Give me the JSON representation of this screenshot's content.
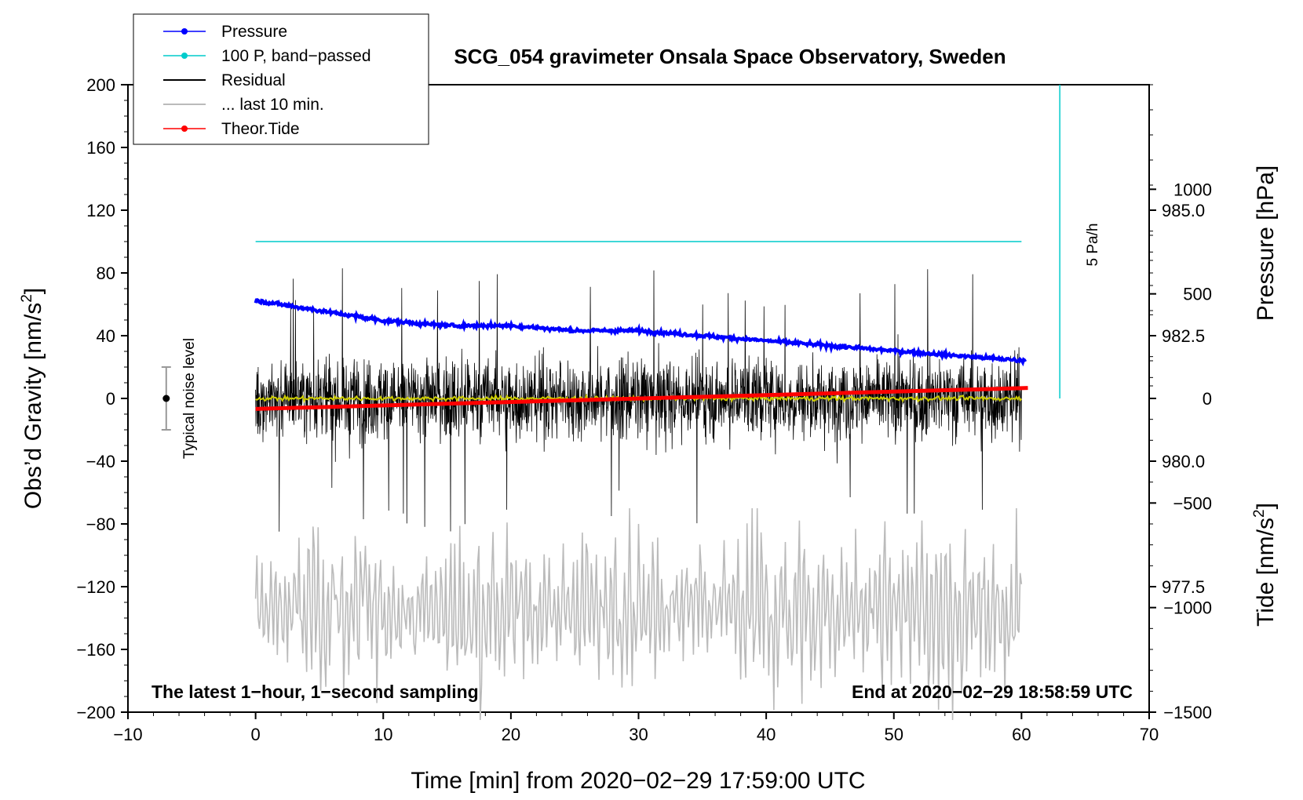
{
  "chart_data": {
    "type": "line",
    "title": "SCG_054 gravimeter Onsala Space Observatory, Sweden",
    "xlabel": "Time [min] from 2020−02−29 17:59:00 UTC",
    "ylabel_left_main": "Obs’d Gravity [nm/s",
    "ylabel_left_sup": "2",
    "ylabel_left_close": "]",
    "ylabel_right_pressure": "Pressure [hPa]",
    "ylabel_right_tide_main": "Tide [nm/s",
    "ylabel_right_tide_sup": "2",
    "ylabel_right_tide_close": "]",
    "xlim": [
      -10,
      70
    ],
    "ylim_left": [
      -200,
      200
    ],
    "ylim_pressure": [
      975.0,
      987.5
    ],
    "ylim_tide": [
      -1500,
      1500
    ],
    "x_ticks": [
      "−10",
      "0",
      "10",
      "20",
      "30",
      "40",
      "50",
      "60",
      "70"
    ],
    "x_tick_values": [
      -10,
      0,
      10,
      20,
      30,
      40,
      50,
      60,
      70
    ],
    "y_ticks_left": [
      "200",
      "160",
      "120",
      "80",
      "40",
      "0",
      "−40",
      "−80",
      "−120",
      "−160",
      "−200"
    ],
    "y_tick_values_left": [
      200,
      160,
      120,
      80,
      40,
      0,
      -40,
      -80,
      -120,
      -160,
      -200
    ],
    "y_ticks_pressure": [
      "985.0",
      "982.5",
      "980.0",
      "977.5"
    ],
    "y_tick_values_pressure": [
      985.0,
      982.5,
      980.0,
      977.5
    ],
    "y_ticks_tide": [
      "1000",
      "500",
      "0",
      "−500",
      "−1000",
      "−1500"
    ],
    "y_tick_values_tide": [
      1000,
      500,
      0,
      -500,
      -1000,
      -1500
    ],
    "legend": [
      {
        "label": "Pressure",
        "color": "#0000ff",
        "style": "line-dot"
      },
      {
        "label": "100 P, band−passed",
        "color": "#00cccc",
        "style": "line-dot"
      },
      {
        "label": "Residual",
        "color": "#000000",
        "style": "line"
      },
      {
        "label": "... last 10 min.",
        "color": "#bbbbbb",
        "style": "line"
      },
      {
        "label": "Theor.Tide",
        "color": "#ff0000",
        "style": "line-dot"
      }
    ],
    "series": [
      {
        "name": "Pressure",
        "axis": "pressure",
        "color": "#0000ff",
        "x": [
          0,
          5,
          10,
          15,
          20,
          25,
          30,
          35,
          40,
          45,
          50,
          55,
          60.3
        ],
        "values": [
          983.2,
          983.0,
          982.8,
          982.7,
          982.7,
          982.6,
          982.6,
          982.5,
          982.4,
          982.3,
          982.2,
          982.1,
          982.0
        ]
      },
      {
        "name": "100 P, band−passed",
        "axis": "left",
        "color": "#00cccc",
        "x": [
          0,
          60
        ],
        "values": [
          100,
          100
        ]
      },
      {
        "name": "Residual",
        "axis": "left",
        "color": "#000000",
        "x_range": [
          0,
          60
        ],
        "approx_amplitude": 40,
        "approx_peak": 85
      },
      {
        "name": "Residual smoothed",
        "axis": "left",
        "color": "#cccc00",
        "x": [
          0,
          60
        ],
        "values": [
          0,
          0
        ]
      },
      {
        "name": "Theor.Tide",
        "axis": "tide",
        "color": "#ff0000",
        "x": [
          0,
          60.5
        ],
        "values": [
          -50,
          50
        ]
      },
      {
        "name": "... last 10 min.",
        "axis": "left",
        "color": "#bbbbbb",
        "x_range": [
          0,
          60
        ],
        "approx_center": -135,
        "approx_amplitude": 40
      },
      {
        "name": "Pressure rate (5 Pa/h)",
        "axis": "left",
        "color": "#00cccc",
        "x": [
          63,
          63
        ],
        "values": [
          0,
          200
        ]
      }
    ],
    "annotations": {
      "noise_label": "Typical noise level",
      "noise_range": [
        -20,
        20
      ],
      "noise_center": 0,
      "noise_x": -7,
      "rate_label": "5 Pa/h",
      "footer_left": "The latest 1−hour, 1−second sampling",
      "footer_right": "End at 2020−02−29 18:58:59 UTC"
    }
  }
}
